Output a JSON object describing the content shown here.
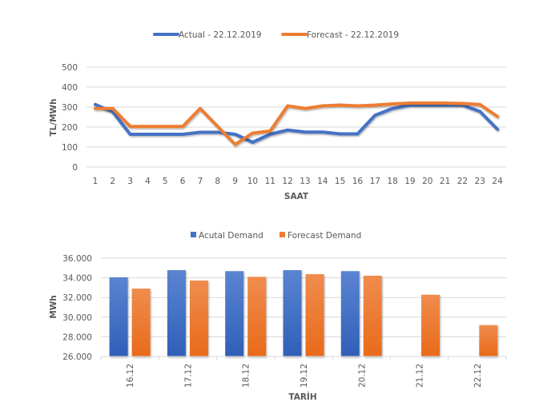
{
  "chart_data": [
    {
      "type": "line",
      "title": "",
      "xlabel": "SAAT",
      "ylabel": "TL/MWh",
      "ylim": [
        0,
        500
      ],
      "yticks": [
        "0",
        "100",
        "200",
        "300",
        "400",
        "500"
      ],
      "ytick_values": [
        0,
        100,
        200,
        300,
        400,
        500
      ],
      "grid": true,
      "legend_position": "top",
      "categories": [
        "1",
        "2",
        "3",
        "4",
        "5",
        "6",
        "7",
        "8",
        "9",
        "10",
        "11",
        "12",
        "13",
        "14",
        "15",
        "16",
        "17",
        "18",
        "19",
        "20",
        "21",
        "22",
        "23",
        "24"
      ],
      "series": [
        {
          "name": "Actual - 22.12.2019",
          "color": "#4472c4",
          "values": [
            313,
            276,
            164,
            164,
            164,
            164,
            174,
            174,
            164,
            124,
            164,
            185,
            175,
            175,
            166,
            166,
            259,
            293,
            310,
            310,
            310,
            310,
            278,
            189
          ]
        },
        {
          "name": "Forecast - 22.12.2019",
          "color": "#ed7d31",
          "values": [
            293,
            293,
            203,
            203,
            203,
            203,
            293,
            203,
            113,
            170,
            180,
            306,
            293,
            306,
            310,
            306,
            310,
            316,
            320,
            320,
            320,
            318,
            313,
            253
          ]
        }
      ]
    },
    {
      "type": "bar",
      "title": "",
      "xlabel": "TARİH",
      "ylabel": "MWh",
      "ylim": [
        26000,
        36000
      ],
      "yticks": [
        "26.000",
        "28.000",
        "30.000",
        "32.000",
        "34.000",
        "36.000"
      ],
      "ytick_values": [
        26000,
        28000,
        30000,
        32000,
        34000,
        36000
      ],
      "grid": true,
      "legend_position": "top",
      "categories": [
        "16.12",
        "17.12",
        "18.12",
        "19.12",
        "20.12",
        "21.12",
        "22.12"
      ],
      "series": [
        {
          "name": "Acutal Demand",
          "color": "#4472c4",
          "values": [
            34050,
            34780,
            34680,
            34780,
            34680,
            null,
            null
          ]
        },
        {
          "name": "Forecast Demand",
          "color": "#ed7d31",
          "values": [
            32900,
            33720,
            34100,
            34370,
            34210,
            32280,
            29190
          ]
        }
      ]
    }
  ]
}
